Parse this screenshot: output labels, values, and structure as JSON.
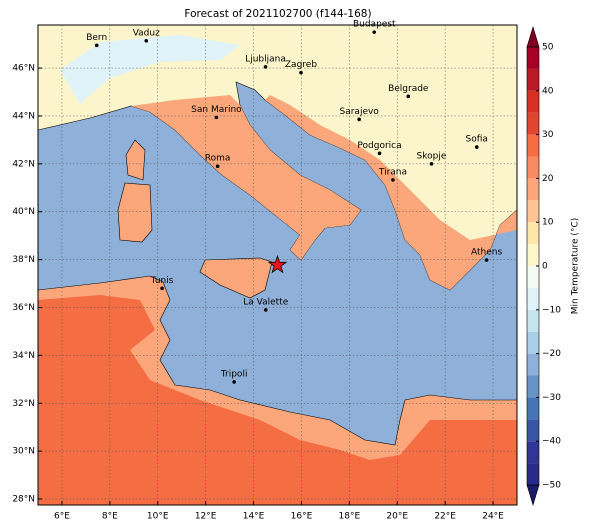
{
  "map": {
    "title": "Forecast of 2021102700 (f144-168)",
    "xlim": [
      5,
      25
    ],
    "ylim": [
      27.75,
      47.8
    ],
    "xticks": [
      {
        "value": 6,
        "label": "6°E"
      },
      {
        "value": 8,
        "label": "8°E"
      },
      {
        "value": 10,
        "label": "10°E"
      },
      {
        "value": 12,
        "label": "12°E"
      },
      {
        "value": 14,
        "label": "14°E"
      },
      {
        "value": 16,
        "label": "16°E"
      },
      {
        "value": 18,
        "label": "18°E"
      },
      {
        "value": 20,
        "label": "20°E"
      },
      {
        "value": 22,
        "label": "22°E"
      },
      {
        "value": 24,
        "label": "24°E"
      }
    ],
    "yticks": [
      {
        "value": 28,
        "label": "28°N"
      },
      {
        "value": 30,
        "label": "30°N"
      },
      {
        "value": 32,
        "label": "32°N"
      },
      {
        "value": 34,
        "label": "34°N"
      },
      {
        "value": 36,
        "label": "36°N"
      },
      {
        "value": 38,
        "label": "38°N"
      },
      {
        "value": 40,
        "label": "40°N"
      },
      {
        "value": 42,
        "label": "42°N"
      },
      {
        "value": 44,
        "label": "44°N"
      },
      {
        "value": 46,
        "label": "46°N"
      }
    ],
    "grid": true,
    "cities": [
      {
        "name": "Bern",
        "lon": 7.45,
        "lat": 46.95
      },
      {
        "name": "Vaduz",
        "lon": 9.52,
        "lat": 47.14
      },
      {
        "name": "Budapest",
        "lon": 19.04,
        "lat": 47.5
      },
      {
        "name": "Ljubljana",
        "lon": 14.5,
        "lat": 46.05
      },
      {
        "name": "Zagreb",
        "lon": 15.98,
        "lat": 45.81
      },
      {
        "name": "Belgrade",
        "lon": 20.46,
        "lat": 44.82
      },
      {
        "name": "San Marino",
        "lon": 12.45,
        "lat": 43.94
      },
      {
        "name": "Sarajevo",
        "lon": 18.41,
        "lat": 43.86
      },
      {
        "name": "Sofia",
        "lon": 23.32,
        "lat": 42.7
      },
      {
        "name": "Podgorica",
        "lon": 19.26,
        "lat": 42.44
      },
      {
        "name": "Skopje",
        "lon": 21.43,
        "lat": 42.0
      },
      {
        "name": "Roma",
        "lon": 12.5,
        "lat": 41.9
      },
      {
        "name": "Tirana",
        "lon": 19.82,
        "lat": 41.33
      },
      {
        "name": "Athens",
        "lon": 23.73,
        "lat": 37.98
      },
      {
        "name": "Tunis",
        "lon": 10.18,
        "lat": 36.8
      },
      {
        "name": "La Valette",
        "lon": 14.51,
        "lat": 35.9
      },
      {
        "name": "Tripoli",
        "lon": 13.19,
        "lat": 32.89
      }
    ],
    "event": {
      "lon": 15.0,
      "lat": 37.77
    }
  },
  "colorbar": {
    "label": "Min Temperature (°C)",
    "levels": [
      -50,
      -45,
      -40,
      -35,
      -30,
      -25,
      -20,
      -15,
      -10,
      -5,
      0,
      5,
      10,
      15,
      20,
      25,
      30,
      35,
      40,
      45,
      50
    ],
    "colors": [
      "#2a2a8a",
      "#313695",
      "#3a55a5",
      "#4575b4",
      "#6a93c5",
      "#8fb0d8",
      "#abd0e6",
      "#c8e4ef",
      "#e0f3f8",
      "#f4fbf4",
      "#fdf6cc",
      "#fee6a8",
      "#fdc593",
      "#fca77b",
      "#f98a62",
      "#f46d43",
      "#e04530",
      "#d73027",
      "#b81a28",
      "#a50026"
    ],
    "under_color": "#1b1b6b",
    "over_color": "#7f0020",
    "ticks": [
      {
        "value": -50,
        "label": "−50"
      },
      {
        "value": -40,
        "label": "−40"
      },
      {
        "value": -30,
        "label": "−30"
      },
      {
        "value": -20,
        "label": "−20"
      },
      {
        "value": -10,
        "label": "−10"
      },
      0,
      10,
      20,
      30,
      40,
      50
    ]
  }
}
